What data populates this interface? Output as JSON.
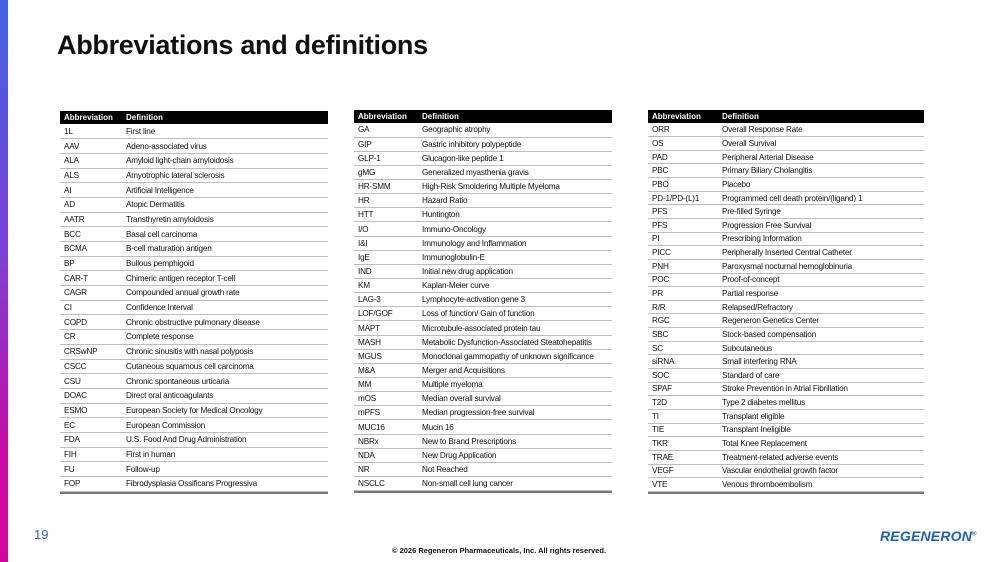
{
  "title": "Abbreviations and definitions",
  "page_number": "19",
  "footer": "© 2026 Regeneron Pharmaceuticals, Inc.  All rights reserved.",
  "logo": "REGENERON",
  "headers": {
    "abbr": "Abbreviation",
    "def": "Definition"
  },
  "tables": [
    [
      [
        "1L",
        "First line"
      ],
      [
        "AAV",
        "Adeno-associated virus"
      ],
      [
        "ALA",
        "Amyloid light-chain amyloidosis"
      ],
      [
        "ALS",
        "Amyotrophic lateral sclerosis"
      ],
      [
        "AI",
        "Artificial Intelligence"
      ],
      [
        "AD",
        "Atopic Dermatitis"
      ],
      [
        "AATR",
        "Transthyretin amyloidosis"
      ],
      [
        "BCC",
        "Basal cell carcinoma"
      ],
      [
        "BCMA",
        "B-cell maturation antigen"
      ],
      [
        "BP",
        "Bullous pemphigoid"
      ],
      [
        "CAR-T",
        "Chimeric antigen receptor T-cell"
      ],
      [
        "CAGR",
        "Compounded annual growth rate"
      ],
      [
        "CI",
        "Confidence Interval"
      ],
      [
        "COPD",
        "Chronic obstructive pulmonary disease"
      ],
      [
        "CR",
        "Complete response"
      ],
      [
        "CRSwNP",
        "Chronic sinusitis with nasal polyposis"
      ],
      [
        "CSCC",
        "Cutaneous squamous cell carcinoma"
      ],
      [
        "CSU",
        "Chronic spontaneous urticaria"
      ],
      [
        "DOAC",
        "Direct oral anticoagulants"
      ],
      [
        "ESMO",
        "European Society for Medical Oncology"
      ],
      [
        "EC",
        "European Commission"
      ],
      [
        "FDA",
        "U.S. Food And Drug Administration"
      ],
      [
        "FIH",
        "First in human"
      ],
      [
        "FU",
        "Follow-up"
      ],
      [
        "FOP",
        "Fibrodysplasia Ossificans Progressiva"
      ]
    ],
    [
      [
        "GA",
        "Geographic atrophy"
      ],
      [
        "GIP",
        "Gastric inhibitory polypeptide"
      ],
      [
        "GLP-1",
        "Glucagon-like peptide 1"
      ],
      [
        "gMG",
        "Generalized myasthenia gravis"
      ],
      [
        "HR-SMM",
        "High-Risk Smoldering Multiple Myeloma"
      ],
      [
        "HR",
        "Hazard Ratio"
      ],
      [
        "HTT",
        "Huntington"
      ],
      [
        "I/O",
        "Immuno-Oncology"
      ],
      [
        "I&I",
        "Immunology and Inflammation"
      ],
      [
        "IgE",
        "Immunoglobulin-E"
      ],
      [
        "IND",
        "Initial new drug application"
      ],
      [
        "KM",
        "Kaplan-Meier curve"
      ],
      [
        "LAG-3",
        "Lymphocyte-activation gene 3"
      ],
      [
        "LOF/GOF",
        "Loss of function/ Gain of function"
      ],
      [
        "MAPT",
        "Microtubule-associated protein tau"
      ],
      [
        "MASH",
        "Metabolic Dysfunction-Associated Steatohepatitis"
      ],
      [
        "MGUS",
        "Monoclonal gammopathy of unknown significance"
      ],
      [
        "M&A",
        "Merger and Acquisitions"
      ],
      [
        "MM",
        "Multiple myeloma"
      ],
      [
        "mOS",
        "Median overall survival"
      ],
      [
        "mPFS",
        "Median progression-free survival"
      ],
      [
        "MUC16",
        "Mucin 16"
      ],
      [
        "NBRx",
        "New to Brand Prescriptions"
      ],
      [
        "NDA",
        "New Drug Application"
      ],
      [
        "NR",
        "Not Reached"
      ],
      [
        "NSCLC",
        "Non-small cell lung cancer"
      ]
    ],
    [
      [
        "ORR",
        "Overall Response Rate"
      ],
      [
        "OS",
        "Overall Survival"
      ],
      [
        "PAD",
        "Peripheral Arterial Disease"
      ],
      [
        "PBC",
        "Primary Biliary Cholangitis"
      ],
      [
        "PBO",
        "Placebo"
      ],
      [
        "PD-1/PD-(L)1",
        "Programmed cell death protein/(ligand) 1"
      ],
      [
        "PFS",
        "Pre-filled Syringe"
      ],
      [
        "PFS",
        "Progression Free Survival"
      ],
      [
        "PI",
        "Prescribing Information"
      ],
      [
        "PICC",
        "Peripherally Inserted Central Catheter"
      ],
      [
        "PNH",
        "Paroxysmal nocturnal hemoglobinuria"
      ],
      [
        "POC",
        "Proof-of-concept"
      ],
      [
        "PR",
        "Partial response"
      ],
      [
        "R/R",
        "Relapsed/Refractory"
      ],
      [
        "RGC",
        "Regeneron Genetics Center"
      ],
      [
        "SBC",
        "Stock-based compensation"
      ],
      [
        "SC",
        "Subcutaneous"
      ],
      [
        "siRNA",
        "Small interfering RNA"
      ],
      [
        "SOC",
        "Standard of care"
      ],
      [
        "SPAF",
        "Stroke Prevention in Atrial Fibrillation"
      ],
      [
        "T2D",
        "Type 2 diabetes mellitus"
      ],
      [
        "TI",
        "Transplant eligible"
      ],
      [
        "TIE",
        "Transplant Ineligible"
      ],
      [
        "TKR",
        "Total Knee Replacement"
      ],
      [
        "TRAE",
        "Treatment-related adverse events"
      ],
      [
        "VEGF",
        "Vascular endothelial growth factor"
      ],
      [
        "VTE",
        "Venous thromboembolism"
      ]
    ]
  ]
}
